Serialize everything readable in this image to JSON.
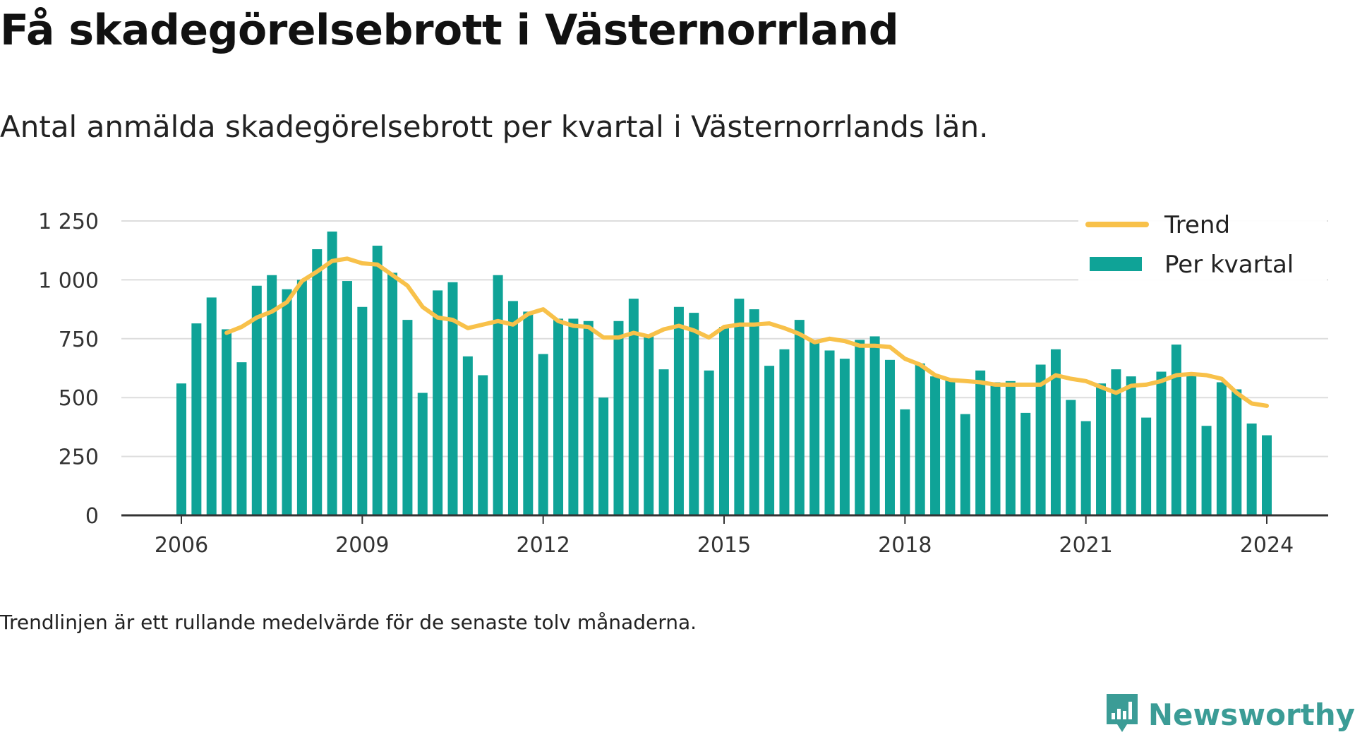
{
  "title": "Få skadegörelsebrott i Västernorrland",
  "subtitle": "Antal anmälda skadegörelsebrott per kvartal i Västernorrlands län.",
  "footnote": "Trendlinjen är ett rullande medelvärde för de senaste tolv månaderna.",
  "brand": {
    "name": "Newsworthy",
    "icon": "newsworthy-logo-icon"
  },
  "colors": {
    "bars": "#0fa397",
    "trend": "#f8c14a",
    "grid": "#dddddd",
    "axis": "#333333"
  },
  "chart_data": {
    "type": "bar",
    "title": "",
    "xlabel": "",
    "ylabel": "",
    "ylim": [
      0,
      1250
    ],
    "yticks": [
      0,
      250,
      500,
      750,
      1000,
      1250
    ],
    "ytick_labels": [
      "0",
      "250",
      "500",
      "750",
      "1 000",
      "1 250"
    ],
    "xticks": [
      2006,
      2009,
      2012,
      2015,
      2018,
      2021,
      2024
    ],
    "xtick_labels": [
      "2006",
      "2009",
      "2012",
      "2015",
      "2018",
      "2021",
      "2024"
    ],
    "grid": true,
    "legend": {
      "position": "top-right",
      "entries": [
        "Trend",
        "Per kvartal"
      ]
    },
    "categories": [
      "2006 Q1",
      "2006 Q2",
      "2006 Q3",
      "2006 Q4",
      "2007 Q1",
      "2007 Q2",
      "2007 Q3",
      "2007 Q4",
      "2008 Q1",
      "2008 Q2",
      "2008 Q3",
      "2008 Q4",
      "2009 Q1",
      "2009 Q2",
      "2009 Q3",
      "2009 Q4",
      "2010 Q1",
      "2010 Q2",
      "2010 Q3",
      "2010 Q4",
      "2011 Q1",
      "2011 Q2",
      "2011 Q3",
      "2011 Q4",
      "2012 Q1",
      "2012 Q2",
      "2012 Q3",
      "2012 Q4",
      "2013 Q1",
      "2013 Q2",
      "2013 Q3",
      "2013 Q4",
      "2014 Q1",
      "2014 Q2",
      "2014 Q3",
      "2014 Q4",
      "2015 Q1",
      "2015 Q2",
      "2015 Q3",
      "2015 Q4",
      "2016 Q1",
      "2016 Q2",
      "2016 Q3",
      "2016 Q4",
      "2017 Q1",
      "2017 Q2",
      "2017 Q3",
      "2017 Q4",
      "2018 Q1",
      "2018 Q2",
      "2018 Q3",
      "2018 Q4",
      "2019 Q1",
      "2019 Q2",
      "2019 Q3",
      "2019 Q4",
      "2020 Q1",
      "2020 Q2",
      "2020 Q3",
      "2020 Q4",
      "2021 Q1",
      "2021 Q2",
      "2021 Q3",
      "2021 Q4",
      "2022 Q1",
      "2022 Q2",
      "2022 Q3",
      "2022 Q4",
      "2023 Q1",
      "2023 Q2",
      "2023 Q3",
      "2023 Q4",
      "2024 Q1"
    ],
    "series": [
      {
        "name": "Per kvartal",
        "type": "bar",
        "values": [
          560,
          815,
          925,
          790,
          650,
          975,
          1020,
          960,
          1000,
          1130,
          1205,
          995,
          885,
          1145,
          1030,
          830,
          520,
          955,
          990,
          675,
          595,
          1020,
          910,
          865,
          685,
          835,
          835,
          825,
          500,
          825,
          920,
          765,
          620,
          885,
          860,
          615,
          800,
          920,
          875,
          635,
          705,
          830,
          740,
          700,
          665,
          745,
          760,
          660,
          450,
          645,
          590,
          575,
          430,
          615,
          565,
          570,
          435,
          640,
          705,
          490,
          400,
          560,
          620,
          590,
          415,
          610,
          725,
          600,
          380,
          565,
          535,
          390,
          340
        ]
      },
      {
        "name": "Trend",
        "type": "line",
        "values": [
          null,
          null,
          null,
          775,
          800,
          840,
          865,
          905,
          995,
          1035,
          1080,
          1090,
          1070,
          1065,
          1020,
          975,
          885,
          840,
          830,
          795,
          810,
          825,
          810,
          855,
          875,
          825,
          805,
          800,
          755,
          755,
          775,
          760,
          790,
          805,
          785,
          755,
          800,
          810,
          810,
          815,
          795,
          770,
          735,
          750,
          740,
          720,
          720,
          715,
          665,
          640,
          595,
          575,
          570,
          565,
          555,
          555,
          555,
          555,
          595,
          580,
          570,
          545,
          520,
          550,
          555,
          570,
          595,
          600,
          595,
          580,
          520,
          475,
          465
        ]
      }
    ]
  }
}
